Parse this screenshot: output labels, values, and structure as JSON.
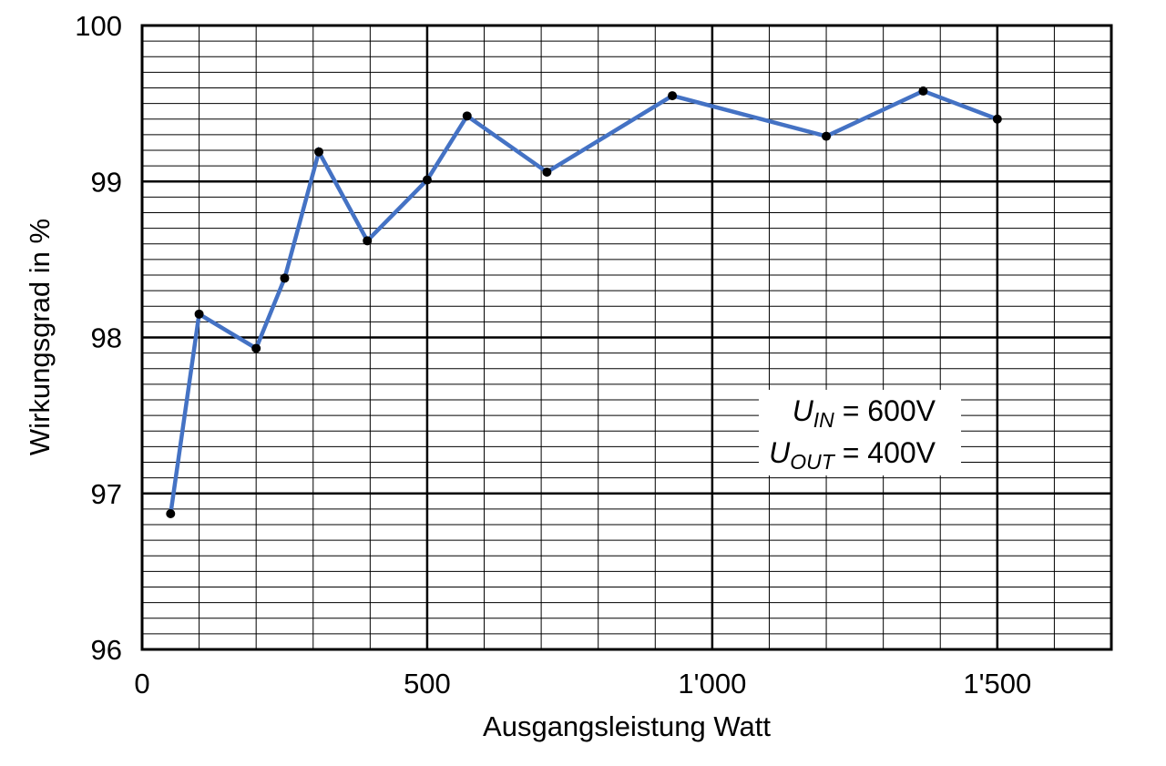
{
  "chart_data": {
    "type": "line",
    "title": "",
    "xlabel": "Ausgangsleistung Watt",
    "ylabel": "Wirkungsgrad in %",
    "xlim": [
      0,
      1700
    ],
    "ylim": [
      96,
      100
    ],
    "x_ticks": [
      {
        "value": 0,
        "label": "0"
      },
      {
        "value": 500,
        "label": "500"
      },
      {
        "value": 1000,
        "label": "1'000"
      },
      {
        "value": 1500,
        "label": "1'500"
      }
    ],
    "y_ticks": [
      {
        "value": 96,
        "label": "96"
      },
      {
        "value": 97,
        "label": "97"
      },
      {
        "value": 98,
        "label": "98"
      },
      {
        "value": 99,
        "label": "99"
      },
      {
        "value": 100,
        "label": "100"
      }
    ],
    "grid": true,
    "x_minor_step": 100,
    "y_minor_step": 0.1,
    "series": [
      {
        "name": "",
        "color": "#4472C4",
        "marker_color": "#000000",
        "x": [
          50,
          100,
          200,
          250,
          310,
          395,
          500,
          570,
          710,
          930,
          1200,
          1370,
          1500
        ],
        "y": [
          96.87,
          98.15,
          97.93,
          98.38,
          99.19,
          98.62,
          99.01,
          99.42,
          99.06,
          99.55,
          99.29,
          99.58,
          99.4
        ]
      }
    ],
    "annotation": {
      "line1_var": "U",
      "line1_sub": "IN",
      "line1_rest": " = 600V",
      "line2_var": "U",
      "line2_sub": "OUT",
      "line2_rest": " = 400V"
    }
  }
}
